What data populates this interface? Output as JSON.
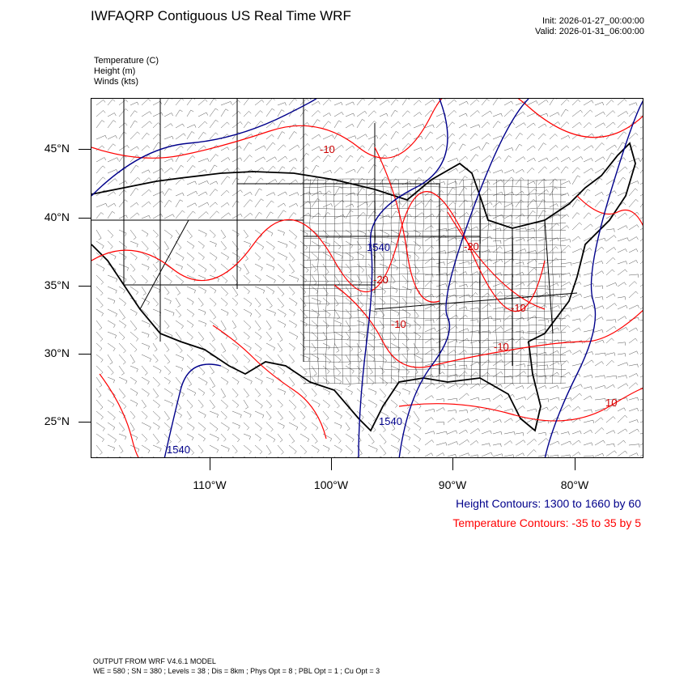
{
  "header": {
    "title": "IWFAQRP Contiguous US Real Time WRF",
    "init": "Init: 2026-01-27_00:00:00",
    "valid": "Valid: 2026-01-31_06:00:00"
  },
  "variables": {
    "temperature": "Temperature   (C)",
    "height": "Height   (m)",
    "winds": "Winds   (kts)"
  },
  "map": {
    "lat_labels": [
      "45°N",
      "40°N",
      "35°N",
      "30°N",
      "25°N"
    ],
    "lon_labels": [
      "110°W",
      "100°W",
      "90°W",
      "80°W"
    ],
    "height_contour_labels": [
      "1540",
      "1540",
      "1540"
    ],
    "temperature_contour_labels": [
      "-10",
      "-20",
      "-20",
      "-10",
      "-10",
      "-10",
      "10"
    ],
    "colors": {
      "height": "#00008b",
      "temperature": "#ff0000",
      "boundaries": "#000000"
    }
  },
  "legend": {
    "height": "Height Contours: 1300 to 1660 by 60",
    "temperature": "Temperature Contours: -35 to 35 by 5"
  },
  "footer": {
    "model": "OUTPUT FROM WRF V4.6.1 MODEL",
    "params": "WE = 580 ; SN = 380 ; Levels = 38 ; Dis = 8km ; Phys Opt = 8 ; PBL Opt = 1 ; Cu Opt = 3"
  }
}
